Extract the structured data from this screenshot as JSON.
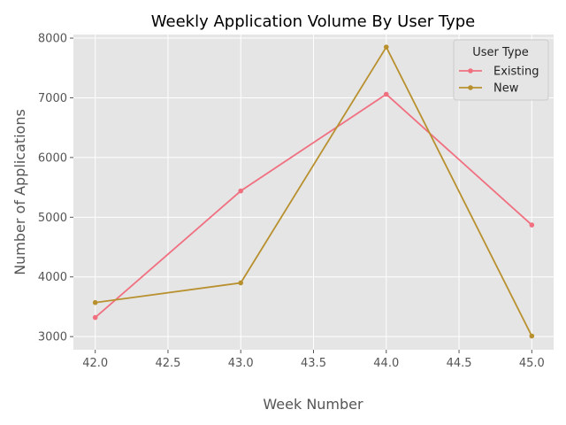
{
  "chart_data": {
    "type": "line",
    "title": "Weekly Application Volume By User Type",
    "xlabel": "Week Number",
    "ylabel": "Number of Applications",
    "xlim": [
      41.85,
      45.15
    ],
    "ylim": [
      2780,
      8060
    ],
    "xticks": [
      "42.0",
      "42.5",
      "43.0",
      "43.5",
      "44.0",
      "44.5",
      "45.0"
    ],
    "yticks": [
      "3000",
      "4000",
      "5000",
      "6000",
      "7000",
      "8000"
    ],
    "grid": true,
    "legend": {
      "title": "User Type",
      "placement": "top-right"
    },
    "x": [
      42,
      43,
      44,
      45
    ],
    "series": [
      {
        "name": "Existing",
        "color": "#f07080",
        "values": [
          3320,
          5440,
          7060,
          4870
        ]
      },
      {
        "name": "New",
        "color": "#b8902e",
        "values": [
          3570,
          3900,
          7850,
          3010
        ]
      }
    ]
  }
}
